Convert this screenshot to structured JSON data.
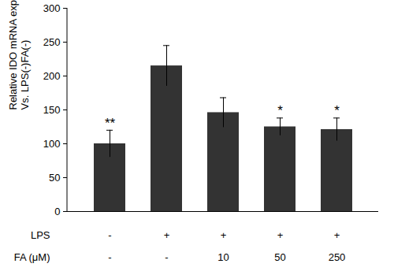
{
  "chart_data": {
    "type": "bar",
    "y_label": "Relative IDO mRNA expression\nVs. LPS(-)FA(-)",
    "category_rows": [
      {
        "label": "LPS",
        "values": [
          "-",
          "+",
          "+",
          "+",
          "+"
        ]
      },
      {
        "label": "FA (μM)",
        "values": [
          "-",
          "-",
          "10",
          "50",
          "250"
        ]
      }
    ],
    "values": [
      100,
      215,
      146,
      125,
      121
    ],
    "errors": [
      20,
      30,
      22,
      13,
      17
    ],
    "annotations": [
      "**",
      null,
      null,
      "*",
      "*"
    ],
    "color": "#333333",
    "ylim": [
      0,
      300
    ],
    "yticks": [
      0,
      50,
      100,
      150,
      200,
      250,
      300
    ],
    "grid": false
  }
}
